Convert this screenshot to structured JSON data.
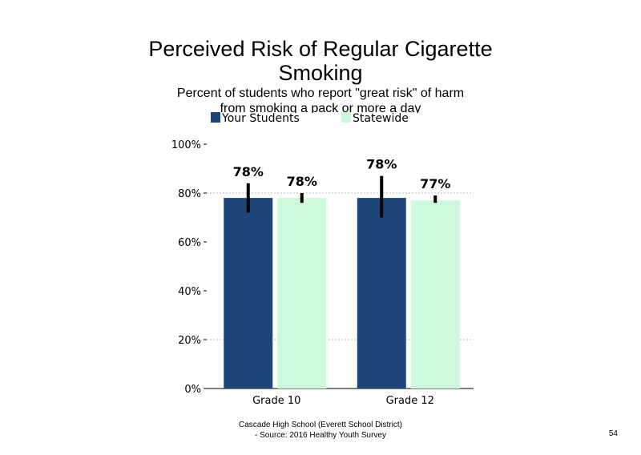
{
  "header": {
    "title_line1": "Perceived Risk of Regular Cigarette",
    "title_line2": "Smoking",
    "subtitle_line1": "Percent of students who report \"great risk\" of harm",
    "subtitle_line2": "from smoking a pack or more a day"
  },
  "footer": {
    "line1": "Cascade High School (Everett School District)",
    "line2": "- Source: 2016 Healthy  Youth Survey",
    "page_number": "54"
  },
  "colors": {
    "your_students": "#1f4678",
    "statewide": "#ccfadb",
    "error_bar": "#000000",
    "gridline": "#bbbbbb"
  },
  "chart_data": {
    "type": "bar",
    "title": "Perceived Risk of Regular Cigarette Smoking",
    "subtitle": "Percent of students who report \"great risk\" of harm from smoking a pack or more a day",
    "categories": [
      "Grade 10",
      "Grade 12"
    ],
    "series": [
      {
        "name": "Your Students",
        "values": [
          78,
          78
        ],
        "labels": [
          "78%",
          "78%"
        ],
        "error_low": [
          72,
          70
        ],
        "error_high": [
          84,
          87
        ]
      },
      {
        "name": "Statewide",
        "values": [
          78,
          77
        ],
        "labels": [
          "78%",
          "77%"
        ],
        "error_low": [
          76,
          76
        ],
        "error_high": [
          80,
          79
        ]
      }
    ],
    "yticks": [
      "0%",
      "20%",
      "40%",
      "60%",
      "80%",
      "100%"
    ],
    "ylim": [
      0,
      100
    ],
    "gridlines_at": [
      20,
      80
    ],
    "legend_position": "top",
    "xlabel": "",
    "ylabel": ""
  }
}
